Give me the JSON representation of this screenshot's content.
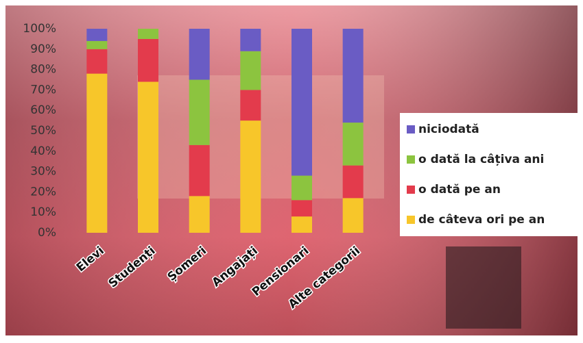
{
  "chart_data": {
    "type": "stacked_bar",
    "categories": [
      "Elevi",
      "Studenți",
      "Șomeri",
      "Angajați",
      "Pensionari",
      "Alte categorii"
    ],
    "series": [
      {
        "name": "de câteva ori pe an",
        "color": "#f7c62a",
        "values": [
          78,
          74,
          18,
          55,
          8,
          17
        ]
      },
      {
        "name": "o dată pe an",
        "color": "#e33b4c",
        "values": [
          12,
          21,
          25,
          15,
          8,
          16
        ]
      },
      {
        "name": "o dată la câțiva ani",
        "color": "#8cc43f",
        "values": [
          4,
          5,
          32,
          19,
          12,
          21
        ]
      },
      {
        "name": "niciodată",
        "color": "#6a5cc4",
        "values": [
          6,
          0,
          25,
          11,
          72,
          46
        ]
      }
    ],
    "ylim": [
      0,
      100
    ],
    "yticks": [
      {
        "value": 0,
        "label": "0%"
      },
      {
        "value": 10,
        "label": "10%"
      },
      {
        "value": 20,
        "label": "20%"
      },
      {
        "value": 30,
        "label": "30%"
      },
      {
        "value": 40,
        "label": "40%"
      },
      {
        "value": 50,
        "label": "50%"
      },
      {
        "value": 60,
        "label": "60%"
      },
      {
        "value": 70,
        "label": "70%"
      },
      {
        "value": 80,
        "label": "80%"
      },
      {
        "value": 90,
        "label": "90%"
      },
      {
        "value": 100,
        "label": "100%"
      }
    ],
    "legend": "right"
  }
}
